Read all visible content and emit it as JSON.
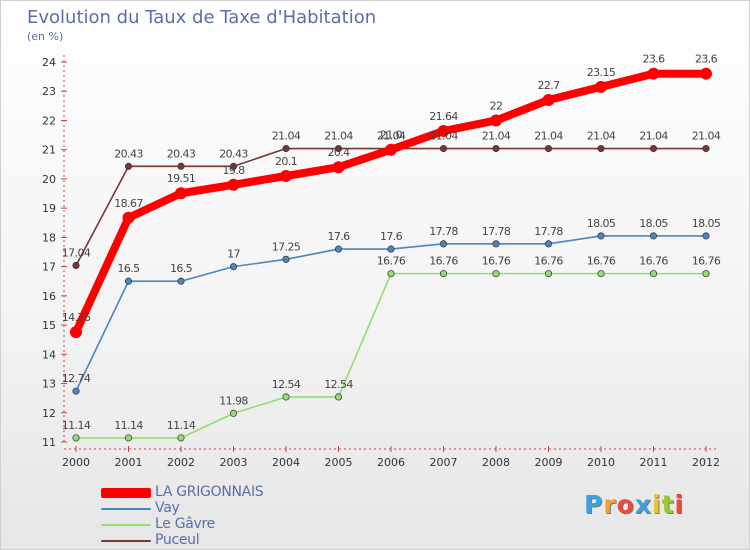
{
  "title": "Evolution du Taux de Taxe d'Habitation",
  "unit_label": "(en %)",
  "logo": {
    "text": "Proxiti",
    "letters": [
      "P",
      "r",
      "o",
      "x",
      "i",
      "t",
      "i"
    ],
    "colors": [
      "#3fa0e0",
      "#f0a030",
      "#e84a3c",
      "#3fa0e0",
      "#f0c030",
      "#a0c830",
      "#e84a3c"
    ]
  },
  "chart_data": {
    "type": "line",
    "x": [
      "2000",
      "2001",
      "2002",
      "2003",
      "2004",
      "2005",
      "2006",
      "2007",
      "2008",
      "2009",
      "2010",
      "2011",
      "2012"
    ],
    "ylim": [
      11,
      24
    ],
    "yticks": [
      "11",
      "12",
      "13",
      "14",
      "15",
      "16",
      "17",
      "18",
      "19",
      "20",
      "21",
      "22",
      "23",
      "24"
    ],
    "grid": false,
    "legend_position": "bottom-left",
    "series": [
      {
        "name": "LA GRIGONNAIS",
        "color": "#ff0000",
        "values": [
          14.76,
          18.67,
          19.51,
          19.8,
          20.1,
          20.4,
          21.0,
          21.64,
          22,
          22.7,
          23.15,
          23.6,
          23.6
        ],
        "labels": [
          "14.76",
          "18.67",
          "19.51",
          "19.8",
          "20.1",
          "20.4",
          "21.0",
          "21.64",
          "22",
          "22.7",
          "23.15",
          "23.6",
          "23.6"
        ]
      },
      {
        "name": "Vay",
        "color": "#4a86c0",
        "values": [
          12.74,
          16.5,
          16.5,
          17,
          17.25,
          17.6,
          17.6,
          17.78,
          17.78,
          17.78,
          18.05,
          18.05,
          18.05
        ],
        "labels": [
          "12.74",
          "16.5",
          "16.5",
          "17",
          "17.25",
          "17.6",
          "17.6",
          "17.78",
          "17.78",
          "17.78",
          "18.05",
          "18.05",
          "18.05"
        ]
      },
      {
        "name": "Le Gâvre",
        "color": "#90e070",
        "values": [
          11.14,
          11.14,
          11.14,
          11.98,
          12.54,
          12.54,
          16.76,
          16.76,
          16.76,
          16.76,
          16.76,
          16.76,
          16.76
        ],
        "labels": [
          "11.14",
          "11.14",
          "11.14",
          "11.98",
          "12.54",
          "12.54",
          "16.76",
          "16.76",
          "16.76",
          "16.76",
          "16.76",
          "16.76",
          "16.76"
        ]
      },
      {
        "name": "Puceul",
        "color": "#7a3535",
        "values": [
          17.04,
          20.43,
          20.43,
          20.43,
          21.04,
          21.04,
          21.04,
          21.04,
          21.04,
          21.04,
          21.04,
          21.04,
          21.04
        ],
        "labels": [
          "17.04",
          "20.43",
          "20.43",
          "20.43",
          "21.04",
          "21.04",
          "21.04",
          "21.04",
          "21.04",
          "21.04",
          "21.04",
          "21.04",
          "21.04"
        ]
      }
    ]
  }
}
